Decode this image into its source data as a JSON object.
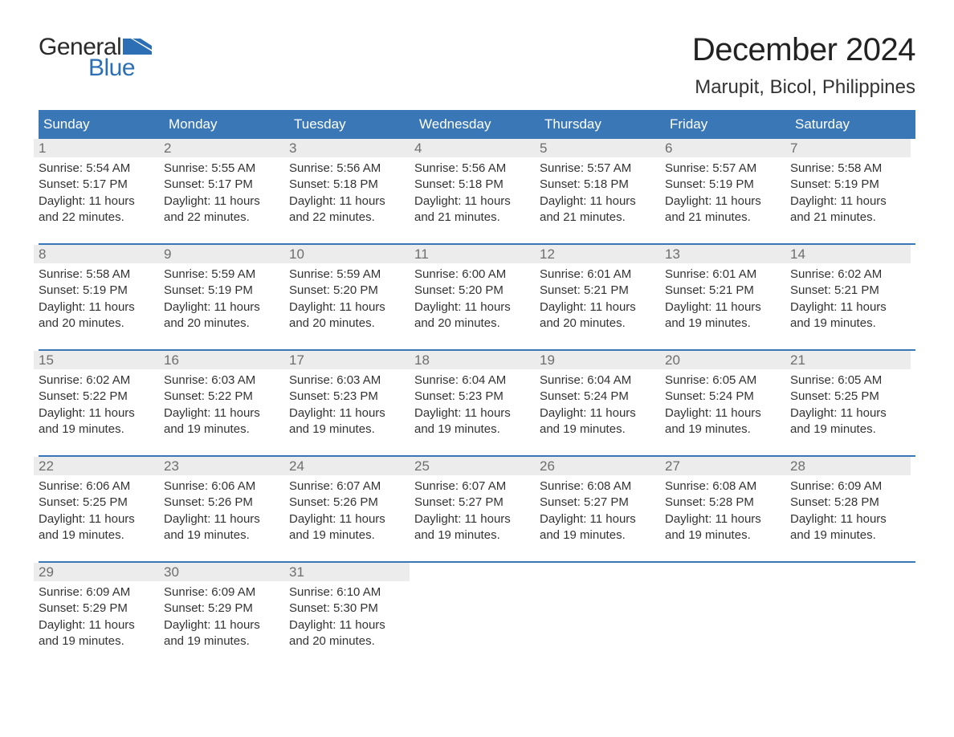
{
  "brand": {
    "text_general": "General",
    "text_blue": "Blue",
    "flag_color": "#2d6fb5",
    "general_color": "#2a2a2a",
    "blue_color": "#2d6fb5"
  },
  "title": "December 2024",
  "location": "Marupit, Bicol, Philippines",
  "colors": {
    "header_bg": "#3a77b6",
    "header_text": "#ffffff",
    "daynum_bg": "#ececec",
    "daynum_text": "#6e6e6e",
    "body_text": "#333333",
    "row_border": "#3a77b6",
    "page_bg": "#ffffff"
  },
  "typography": {
    "title_fontsize": 40,
    "location_fontsize": 24,
    "weekday_fontsize": 17,
    "daynum_fontsize": 17,
    "body_fontsize": 15,
    "logo_fontsize": 30
  },
  "weekdays": [
    "Sunday",
    "Monday",
    "Tuesday",
    "Wednesday",
    "Thursday",
    "Friday",
    "Saturday"
  ],
  "weeks": [
    [
      {
        "num": "1",
        "sunrise": "Sunrise: 5:54 AM",
        "sunset": "Sunset: 5:17 PM",
        "daylight1": "Daylight: 11 hours",
        "daylight2": "and 22 minutes."
      },
      {
        "num": "2",
        "sunrise": "Sunrise: 5:55 AM",
        "sunset": "Sunset: 5:17 PM",
        "daylight1": "Daylight: 11 hours",
        "daylight2": "and 22 minutes."
      },
      {
        "num": "3",
        "sunrise": "Sunrise: 5:56 AM",
        "sunset": "Sunset: 5:18 PM",
        "daylight1": "Daylight: 11 hours",
        "daylight2": "and 22 minutes."
      },
      {
        "num": "4",
        "sunrise": "Sunrise: 5:56 AM",
        "sunset": "Sunset: 5:18 PM",
        "daylight1": "Daylight: 11 hours",
        "daylight2": "and 21 minutes."
      },
      {
        "num": "5",
        "sunrise": "Sunrise: 5:57 AM",
        "sunset": "Sunset: 5:18 PM",
        "daylight1": "Daylight: 11 hours",
        "daylight2": "and 21 minutes."
      },
      {
        "num": "6",
        "sunrise": "Sunrise: 5:57 AM",
        "sunset": "Sunset: 5:19 PM",
        "daylight1": "Daylight: 11 hours",
        "daylight2": "and 21 minutes."
      },
      {
        "num": "7",
        "sunrise": "Sunrise: 5:58 AM",
        "sunset": "Sunset: 5:19 PM",
        "daylight1": "Daylight: 11 hours",
        "daylight2": "and 21 minutes."
      }
    ],
    [
      {
        "num": "8",
        "sunrise": "Sunrise: 5:58 AM",
        "sunset": "Sunset: 5:19 PM",
        "daylight1": "Daylight: 11 hours",
        "daylight2": "and 20 minutes."
      },
      {
        "num": "9",
        "sunrise": "Sunrise: 5:59 AM",
        "sunset": "Sunset: 5:19 PM",
        "daylight1": "Daylight: 11 hours",
        "daylight2": "and 20 minutes."
      },
      {
        "num": "10",
        "sunrise": "Sunrise: 5:59 AM",
        "sunset": "Sunset: 5:20 PM",
        "daylight1": "Daylight: 11 hours",
        "daylight2": "and 20 minutes."
      },
      {
        "num": "11",
        "sunrise": "Sunrise: 6:00 AM",
        "sunset": "Sunset: 5:20 PM",
        "daylight1": "Daylight: 11 hours",
        "daylight2": "and 20 minutes."
      },
      {
        "num": "12",
        "sunrise": "Sunrise: 6:01 AM",
        "sunset": "Sunset: 5:21 PM",
        "daylight1": "Daylight: 11 hours",
        "daylight2": "and 20 minutes."
      },
      {
        "num": "13",
        "sunrise": "Sunrise: 6:01 AM",
        "sunset": "Sunset: 5:21 PM",
        "daylight1": "Daylight: 11 hours",
        "daylight2": "and 19 minutes."
      },
      {
        "num": "14",
        "sunrise": "Sunrise: 6:02 AM",
        "sunset": "Sunset: 5:21 PM",
        "daylight1": "Daylight: 11 hours",
        "daylight2": "and 19 minutes."
      }
    ],
    [
      {
        "num": "15",
        "sunrise": "Sunrise: 6:02 AM",
        "sunset": "Sunset: 5:22 PM",
        "daylight1": "Daylight: 11 hours",
        "daylight2": "and 19 minutes."
      },
      {
        "num": "16",
        "sunrise": "Sunrise: 6:03 AM",
        "sunset": "Sunset: 5:22 PM",
        "daylight1": "Daylight: 11 hours",
        "daylight2": "and 19 minutes."
      },
      {
        "num": "17",
        "sunrise": "Sunrise: 6:03 AM",
        "sunset": "Sunset: 5:23 PM",
        "daylight1": "Daylight: 11 hours",
        "daylight2": "and 19 minutes."
      },
      {
        "num": "18",
        "sunrise": "Sunrise: 6:04 AM",
        "sunset": "Sunset: 5:23 PM",
        "daylight1": "Daylight: 11 hours",
        "daylight2": "and 19 minutes."
      },
      {
        "num": "19",
        "sunrise": "Sunrise: 6:04 AM",
        "sunset": "Sunset: 5:24 PM",
        "daylight1": "Daylight: 11 hours",
        "daylight2": "and 19 minutes."
      },
      {
        "num": "20",
        "sunrise": "Sunrise: 6:05 AM",
        "sunset": "Sunset: 5:24 PM",
        "daylight1": "Daylight: 11 hours",
        "daylight2": "and 19 minutes."
      },
      {
        "num": "21",
        "sunrise": "Sunrise: 6:05 AM",
        "sunset": "Sunset: 5:25 PM",
        "daylight1": "Daylight: 11 hours",
        "daylight2": "and 19 minutes."
      }
    ],
    [
      {
        "num": "22",
        "sunrise": "Sunrise: 6:06 AM",
        "sunset": "Sunset: 5:25 PM",
        "daylight1": "Daylight: 11 hours",
        "daylight2": "and 19 minutes."
      },
      {
        "num": "23",
        "sunrise": "Sunrise: 6:06 AM",
        "sunset": "Sunset: 5:26 PM",
        "daylight1": "Daylight: 11 hours",
        "daylight2": "and 19 minutes."
      },
      {
        "num": "24",
        "sunrise": "Sunrise: 6:07 AM",
        "sunset": "Sunset: 5:26 PM",
        "daylight1": "Daylight: 11 hours",
        "daylight2": "and 19 minutes."
      },
      {
        "num": "25",
        "sunrise": "Sunrise: 6:07 AM",
        "sunset": "Sunset: 5:27 PM",
        "daylight1": "Daylight: 11 hours",
        "daylight2": "and 19 minutes."
      },
      {
        "num": "26",
        "sunrise": "Sunrise: 6:08 AM",
        "sunset": "Sunset: 5:27 PM",
        "daylight1": "Daylight: 11 hours",
        "daylight2": "and 19 minutes."
      },
      {
        "num": "27",
        "sunrise": "Sunrise: 6:08 AM",
        "sunset": "Sunset: 5:28 PM",
        "daylight1": "Daylight: 11 hours",
        "daylight2": "and 19 minutes."
      },
      {
        "num": "28",
        "sunrise": "Sunrise: 6:09 AM",
        "sunset": "Sunset: 5:28 PM",
        "daylight1": "Daylight: 11 hours",
        "daylight2": "and 19 minutes."
      }
    ],
    [
      {
        "num": "29",
        "sunrise": "Sunrise: 6:09 AM",
        "sunset": "Sunset: 5:29 PM",
        "daylight1": "Daylight: 11 hours",
        "daylight2": "and 19 minutes."
      },
      {
        "num": "30",
        "sunrise": "Sunrise: 6:09 AM",
        "sunset": "Sunset: 5:29 PM",
        "daylight1": "Daylight: 11 hours",
        "daylight2": "and 19 minutes."
      },
      {
        "num": "31",
        "sunrise": "Sunrise: 6:10 AM",
        "sunset": "Sunset: 5:30 PM",
        "daylight1": "Daylight: 11 hours",
        "daylight2": "and 20 minutes."
      },
      {
        "empty": true
      },
      {
        "empty": true
      },
      {
        "empty": true
      },
      {
        "empty": true
      }
    ]
  ]
}
